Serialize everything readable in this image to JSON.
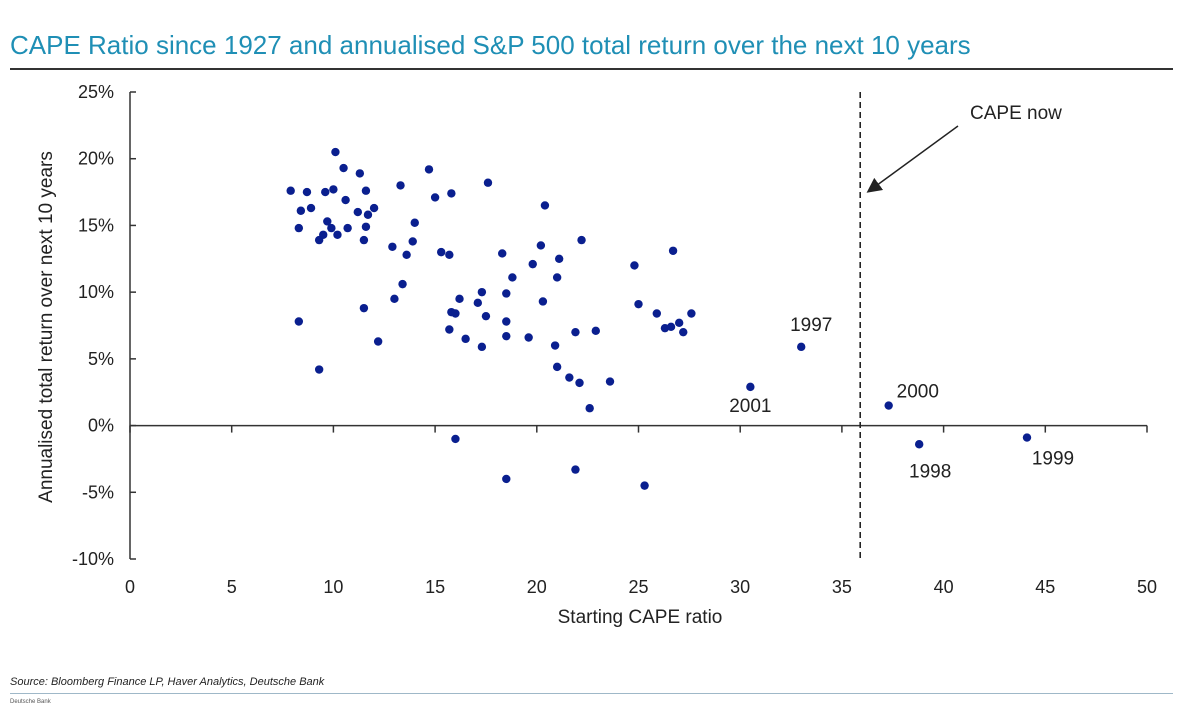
{
  "header": {
    "title": "CAPE Ratio since 1927 and annualised S&P 500 total return over the next 10 years"
  },
  "footer": {
    "source": "Source: Bloomberg Finance LP, Haver Analytics, Deutsche Bank",
    "brand": "Deutsche Bank"
  },
  "colors": {
    "title": "#1f8fb5",
    "points": "#0a1f8f",
    "axis": "#333333"
  },
  "chart_data": {
    "type": "scatter",
    "title": "CAPE Ratio since 1927 and annualised S&P 500 total return over the next 10 years",
    "xlabel": "Starting CAPE ratio",
    "ylabel": "Annualised total return over next 10 years",
    "xlim": [
      0,
      50
    ],
    "ylim": [
      -10,
      25
    ],
    "x_ticks": [
      "0",
      "5",
      "10",
      "15",
      "20",
      "25",
      "30",
      "35",
      "40",
      "45",
      "50"
    ],
    "y_ticks": [
      "25%",
      "20%",
      "15%",
      "10%",
      "5%",
      "0%",
      "-5%",
      "-10%"
    ],
    "grid": false,
    "legend": "none",
    "reference_line": {
      "x": 35.9,
      "style": "dashed",
      "label": "CAPE now"
    },
    "points": [
      {
        "x": 7.9,
        "y": 17.6
      },
      {
        "x": 8.3,
        "y": 14.8
      },
      {
        "x": 8.4,
        "y": 16.1
      },
      {
        "x": 8.7,
        "y": 17.5
      },
      {
        "x": 8.9,
        "y": 16.3
      },
      {
        "x": 8.3,
        "y": 7.8
      },
      {
        "x": 9.3,
        "y": 4.2
      },
      {
        "x": 9.3,
        "y": 13.9
      },
      {
        "x": 9.5,
        "y": 14.3
      },
      {
        "x": 9.6,
        "y": 17.5
      },
      {
        "x": 9.7,
        "y": 15.3
      },
      {
        "x": 9.9,
        "y": 14.8
      },
      {
        "x": 10.0,
        "y": 17.7
      },
      {
        "x": 10.1,
        "y": 20.5
      },
      {
        "x": 10.2,
        "y": 14.3
      },
      {
        "x": 10.5,
        "y": 19.3
      },
      {
        "x": 10.6,
        "y": 16.9
      },
      {
        "x": 10.7,
        "y": 14.8
      },
      {
        "x": 11.2,
        "y": 16.0
      },
      {
        "x": 11.3,
        "y": 18.9
      },
      {
        "x": 11.5,
        "y": 13.9
      },
      {
        "x": 11.5,
        "y": 8.8
      },
      {
        "x": 11.6,
        "y": 17.6
      },
      {
        "x": 11.6,
        "y": 14.9
      },
      {
        "x": 11.7,
        "y": 15.8
      },
      {
        "x": 12.0,
        "y": 16.3
      },
      {
        "x": 12.2,
        "y": 6.3
      },
      {
        "x": 12.9,
        "y": 13.4
      },
      {
        "x": 13.0,
        "y": 9.5
      },
      {
        "x": 13.3,
        "y": 18.0
      },
      {
        "x": 13.4,
        "y": 10.6
      },
      {
        "x": 13.6,
        "y": 12.8
      },
      {
        "x": 13.9,
        "y": 13.8
      },
      {
        "x": 14.0,
        "y": 15.2
      },
      {
        "x": 14.7,
        "y": 19.2
      },
      {
        "x": 15.0,
        "y": 17.1
      },
      {
        "x": 15.3,
        "y": 13.0
      },
      {
        "x": 15.7,
        "y": 12.8
      },
      {
        "x": 15.7,
        "y": 7.2
      },
      {
        "x": 15.8,
        "y": 8.5
      },
      {
        "x": 15.8,
        "y": 17.4
      },
      {
        "x": 16.0,
        "y": 8.4
      },
      {
        "x": 16.0,
        "y": -1.0
      },
      {
        "x": 16.2,
        "y": 9.5
      },
      {
        "x": 16.5,
        "y": 6.5
      },
      {
        "x": 17.1,
        "y": 9.2
      },
      {
        "x": 17.3,
        "y": 10.0
      },
      {
        "x": 17.3,
        "y": 5.9
      },
      {
        "x": 17.5,
        "y": 8.2
      },
      {
        "x": 17.6,
        "y": 18.2
      },
      {
        "x": 18.3,
        "y": 12.9
      },
      {
        "x": 18.5,
        "y": 9.9
      },
      {
        "x": 18.5,
        "y": 7.8
      },
      {
        "x": 18.5,
        "y": 6.7
      },
      {
        "x": 18.5,
        "y": -4.0
      },
      {
        "x": 18.8,
        "y": 11.1
      },
      {
        "x": 19.6,
        "y": 6.6
      },
      {
        "x": 19.8,
        "y": 12.1
      },
      {
        "x": 20.2,
        "y": 13.5
      },
      {
        "x": 20.3,
        "y": 9.3
      },
      {
        "x": 20.4,
        "y": 16.5
      },
      {
        "x": 20.9,
        "y": 6.0
      },
      {
        "x": 21.0,
        "y": 4.4
      },
      {
        "x": 21.0,
        "y": 11.1
      },
      {
        "x": 21.1,
        "y": 12.5
      },
      {
        "x": 21.6,
        "y": 3.6
      },
      {
        "x": 21.9,
        "y": 7.0
      },
      {
        "x": 21.9,
        "y": -3.3
      },
      {
        "x": 22.1,
        "y": 3.2
      },
      {
        "x": 22.2,
        "y": 13.9
      },
      {
        "x": 22.6,
        "y": 1.3
      },
      {
        "x": 22.9,
        "y": 7.1
      },
      {
        "x": 23.6,
        "y": 3.3
      },
      {
        "x": 24.8,
        "y": 12.0
      },
      {
        "x": 25.0,
        "y": 9.1
      },
      {
        "x": 25.3,
        "y": -4.5
      },
      {
        "x": 25.9,
        "y": 8.4
      },
      {
        "x": 26.3,
        "y": 7.3
      },
      {
        "x": 26.6,
        "y": 7.4
      },
      {
        "x": 26.7,
        "y": 13.1
      },
      {
        "x": 27.0,
        "y": 7.7
      },
      {
        "x": 27.2,
        "y": 7.0
      },
      {
        "x": 27.6,
        "y": 8.4
      },
      {
        "x": 30.5,
        "y": 2.9,
        "label": "2001"
      },
      {
        "x": 33.0,
        "y": 5.9,
        "label": "1997"
      },
      {
        "x": 37.3,
        "y": 1.5,
        "label": "2000"
      },
      {
        "x": 38.8,
        "y": -1.4,
        "label": "1998"
      },
      {
        "x": 44.1,
        "y": -0.9,
        "label": "1999"
      }
    ]
  }
}
